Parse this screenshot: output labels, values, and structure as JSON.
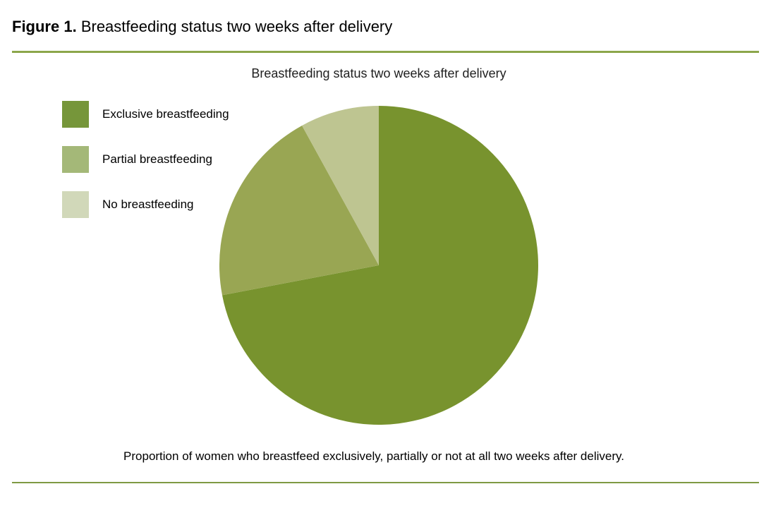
{
  "page": {
    "figure_label": "Figure 1.",
    "figure_title": "Breastfeeding status two weeks after delivery",
    "caption": "Proportion of women who breastfeed exclusively, partially or not at all two weeks after delivery.",
    "rule_color_top": "#8CA64B",
    "rule_color_bottom": "#7F9A43"
  },
  "chart_data": {
    "type": "pie",
    "title": "Breastfeeding status two weeks after delivery",
    "start_angle_deg": 0,
    "direction": "clockwise",
    "legend_position": "upper-left",
    "slices": [
      {
        "label": "Exclusive breastfeeding",
        "value_pct": 72,
        "color": "#78932E",
        "legend_color": "#76963A"
      },
      {
        "label": "Partial breastfeeding",
        "value_pct": 20,
        "color": "#99A653",
        "legend_color": "#A4B878"
      },
      {
        "label": "No breastfeeding",
        "value_pct": 8,
        "color": "#BEC591",
        "legend_color": "#D1D8B9"
      }
    ]
  }
}
